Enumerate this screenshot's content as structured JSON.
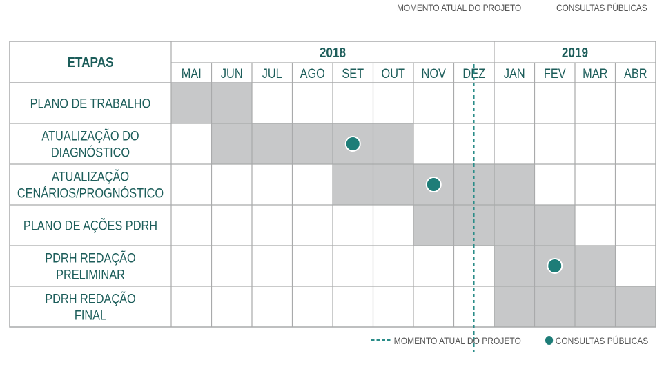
{
  "legend": {
    "current_moment": "MOMENTO ATUAL DO PROJETO",
    "public_consultations": "CONSULTAS PÚBLICAS"
  },
  "header": {
    "stages_label": "ETAPAS",
    "years": [
      {
        "label": "2018",
        "month_count": 8
      },
      {
        "label": "2019",
        "month_count": 4
      }
    ],
    "months": [
      "MAI",
      "JUN",
      "JUL",
      "AGO",
      "SET",
      "OUT",
      "NOV",
      "DEZ",
      "JAN",
      "FEV",
      "MAR",
      "ABR"
    ]
  },
  "stages": [
    {
      "lines": [
        "PLANO DE TRABALHO"
      ],
      "start": 0,
      "end": 1,
      "consultation": null
    },
    {
      "lines": [
        "ATUALIZAÇÃO DO",
        "DIAGNÓSTICO"
      ],
      "start": 1,
      "end": 5,
      "consultation": 4
    },
    {
      "lines": [
        "ATUALIZAÇÃO",
        "CENÁRIOS/PROGNÓSTICO"
      ],
      "start": 4,
      "end": 8,
      "consultation": 6
    },
    {
      "lines": [
        "PLANO DE AÇÕES PDRH"
      ],
      "start": 6,
      "end": 9,
      "consultation": null
    },
    {
      "lines": [
        "PDRH REDAÇÃO",
        "PRELIMINAR"
      ],
      "start": 8,
      "end": 10,
      "consultation": 9
    },
    {
      "lines": [
        "PDRH REDAÇÃO",
        "FINAL"
      ],
      "start": 8,
      "end": 11,
      "consultation": null
    }
  ],
  "current_moment_month_index": 7,
  "colors": {
    "bar_fill": "#c7c8c9",
    "grid": "#a9aaab",
    "text": "#1c5d5a",
    "consultation_dot": "#1e7d78",
    "current_line": "#2a8c88"
  }
}
